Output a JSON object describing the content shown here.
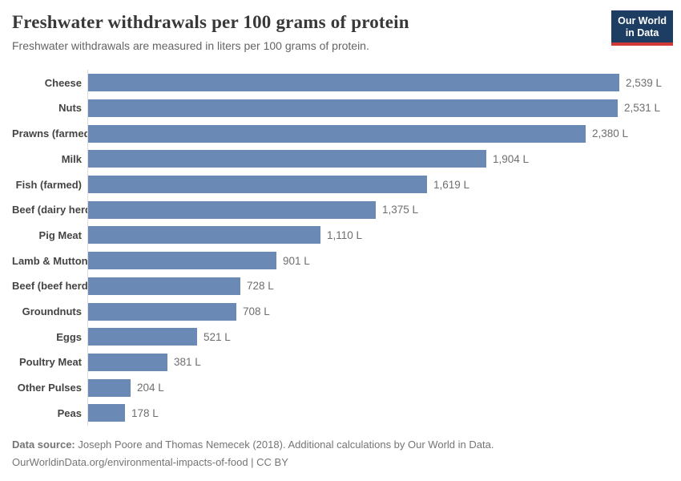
{
  "header": {
    "title": "Freshwater withdrawals per 100 grams of protein",
    "subtitle": "Freshwater withdrawals are measured in liters per 100 grams of protein.",
    "logo": {
      "line1": "Our World",
      "line2": "in Data"
    }
  },
  "chart_data": {
    "type": "bar",
    "orientation": "horizontal",
    "title": "Freshwater withdrawals per 100 grams of protein",
    "subtitle": "Freshwater withdrawals are measured in liters per 100 grams of protein.",
    "unit": "L",
    "xlim": [
      0,
      2539
    ],
    "grid": false,
    "legend": false,
    "bar_color": "#6a89b4",
    "categories": [
      "Cheese",
      "Nuts",
      "Prawns (farmed)",
      "Milk",
      "Fish (farmed)",
      "Beef (dairy herd)",
      "Pig Meat",
      "Lamb & Mutton",
      "Beef (beef herd)",
      "Groundnuts",
      "Eggs",
      "Poultry Meat",
      "Other Pulses",
      "Peas"
    ],
    "values": [
      2539,
      2531,
      2380,
      1904,
      1619,
      1375,
      1110,
      901,
      728,
      708,
      521,
      381,
      204,
      178
    ],
    "value_labels": [
      "2,539 L",
      "2,531 L",
      "2,380 L",
      "1,904 L",
      "1,619 L",
      "1,375 L",
      "1,110 L",
      "901 L",
      "728 L",
      "708 L",
      "521 L",
      "381 L",
      "204 L",
      "178 L"
    ]
  },
  "footer": {
    "datasource_label": "Data source:",
    "datasource_text": " Joseph Poore and Thomas Nemecek (2018). Additional calculations by Our World in Data.",
    "line2": "OurWorldinData.org/environmental-impacts-of-food | CC BY"
  },
  "colors": {
    "bar": "#6a89b4",
    "title": "#383838",
    "subtitle": "#646464",
    "category_label": "#444444",
    "value_label": "#6e6e6e",
    "axis_line": "#dcdcdc",
    "logo_background": "#1d3d63",
    "logo_accent": "#d13a34",
    "footer_text": "#757575",
    "background": "#ffffff"
  }
}
